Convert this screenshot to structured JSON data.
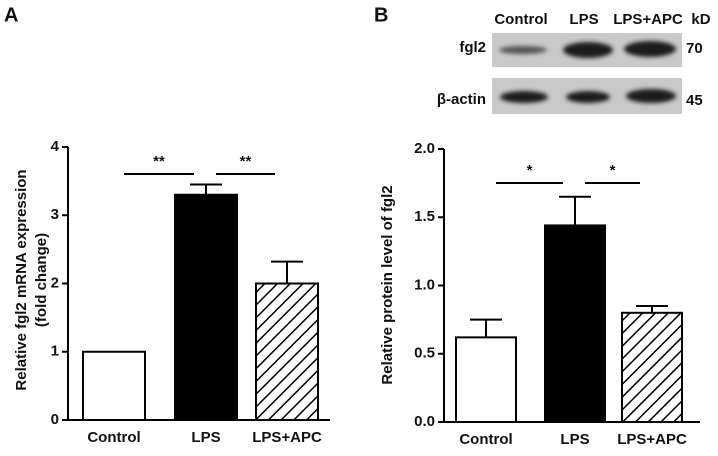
{
  "panels": [
    "A",
    "B"
  ],
  "blot": {
    "lanes": [
      "Control",
      "LPS",
      "LPS+APC"
    ],
    "unit": "kD",
    "rows": [
      {
        "label": "fgl2",
        "size": "70"
      },
      {
        "label": "β-actin",
        "size": "45"
      }
    ]
  },
  "chart_data": [
    {
      "type": "bar",
      "ylabel": [
        "Relative fgl2 mRNA expression",
        "(fold change)"
      ],
      "categories": [
        "Control",
        "LPS",
        "LPS+APC"
      ],
      "values": [
        1,
        3.3,
        2.0
      ],
      "errors": [
        0,
        0.15,
        0.32
      ],
      "fills": [
        "white",
        "black",
        "hatch"
      ],
      "ylim": [
        0,
        4
      ],
      "yticks": [
        0,
        1,
        2,
        3,
        4
      ],
      "annotations": [
        {
          "text": "**",
          "from": 0,
          "to": 1
        },
        {
          "text": "**",
          "from": 1,
          "to": 2
        }
      ]
    },
    {
      "type": "bar",
      "ylabel": [
        "Relative protein level of fgl2"
      ],
      "categories": [
        "Control",
        "LPS",
        "LPS+APC"
      ],
      "values": [
        0.62,
        1.44,
        0.8
      ],
      "errors": [
        0.13,
        0.21,
        0.05
      ],
      "fills": [
        "white",
        "black",
        "hatch"
      ],
      "ylim": [
        0,
        2
      ],
      "yticks": [
        {
          "value": 0,
          "label": "0.0"
        },
        {
          "value": 0.5,
          "label": "0.5"
        },
        {
          "value": 1,
          "label": "1.0"
        },
        {
          "value": 1.5,
          "label": "1.5"
        },
        {
          "value": 2,
          "label": "2.0"
        }
      ],
      "annotations": [
        {
          "text": "*",
          "from": 0,
          "to": 1
        },
        {
          "text": "*",
          "from": 1,
          "to": 2
        }
      ]
    }
  ]
}
